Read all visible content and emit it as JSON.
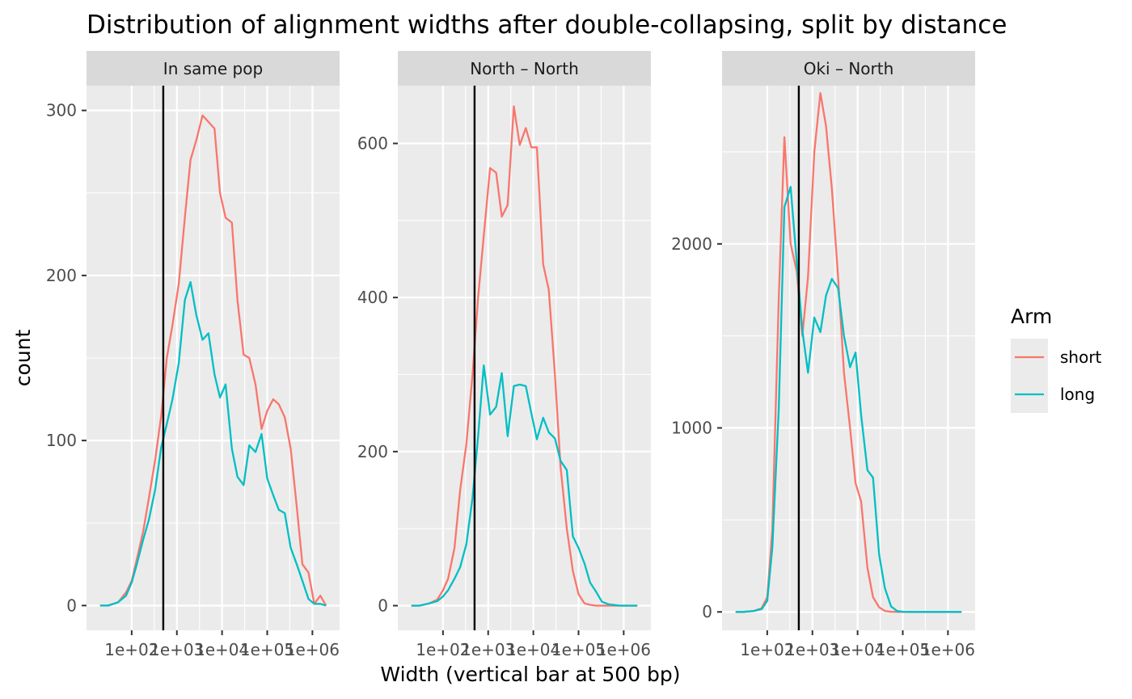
{
  "chart_data": {
    "type": "line",
    "title": "Distribution of alignment widths after double-collapsing, split by distance",
    "xlabel": "Width (vertical bar at 500 bp)",
    "ylabel": "count",
    "x_scale": "log10",
    "xlim": [
      10,
      4000000
    ],
    "x_ticks": [
      100,
      1000,
      10000,
      100000,
      1000000
    ],
    "x_tick_labels": [
      "1e+02",
      "1e+03",
      "1e+04",
      "1e+05",
      "1e+06"
    ],
    "vline": 500,
    "grid": true,
    "legend": {
      "title": "Arm",
      "position": "right",
      "entries": [
        {
          "label": "short",
          "color": "#F8766D"
        },
        {
          "label": "long",
          "color": "#00BFC4"
        }
      ]
    },
    "x": [
      20,
      30,
      50,
      75,
      100,
      130,
      180,
      240,
      330,
      450,
      600,
      800,
      1100,
      1500,
      2000,
      2700,
      3700,
      5000,
      6800,
      9000,
      12000,
      16500,
      22000,
      30000,
      40000,
      55000,
      75000,
      100000,
      135000,
      180000,
      245000,
      330000,
      450000,
      600000,
      820000,
      1100000,
      1500000,
      2000000
    ],
    "panels": [
      {
        "strip": "In same pop",
        "ylim": [
          -15,
          315
        ],
        "y_ticks": [
          0,
          100,
          200,
          300
        ],
        "y_tick_labels": [
          "0",
          "100",
          "200",
          "300"
        ],
        "series": [
          {
            "name": "short",
            "color": "#F8766D",
            "values": [
              0,
              0,
              2,
              8,
              15,
              28,
              45,
              65,
              88,
              115,
              150,
              170,
              195,
              235,
              270,
              282,
              297,
              293,
              289,
              250,
              235,
              232,
              185,
              152,
              150,
              134,
              107,
              118,
              125,
              122,
              114,
              95,
              60,
              25,
              20,
              1,
              6,
              0
            ]
          },
          {
            "name": "long",
            "color": "#00BFC4",
            "values": [
              0,
              0,
              2,
              6,
              14,
              25,
              40,
              52,
              70,
              96,
              110,
              125,
              147,
              185,
              196,
              176,
              161,
              165,
              140,
              126,
              134,
              95,
              78,
              73,
              97,
              93,
              104,
              77,
              67,
              58,
              56,
              35,
              25,
              15,
              4,
              1,
              1,
              0
            ]
          }
        ]
      },
      {
        "strip": "North – North",
        "ylim": [
          -32,
          675
        ],
        "y_ticks": [
          0,
          200,
          400,
          600
        ],
        "y_tick_labels": [
          "0",
          "200",
          "400",
          "600"
        ],
        "series": [
          {
            "name": "short",
            "color": "#F8766D",
            "values": [
              0,
              0,
              3,
              8,
              20,
              35,
              75,
              150,
              210,
              300,
              400,
              480,
              568,
              562,
              505,
              520,
              648,
              598,
              620,
              595,
              595,
              443,
              410,
              300,
              180,
              100,
              45,
              15,
              3,
              1,
              0,
              0,
              0,
              0,
              0,
              0,
              0,
              0
            ]
          },
          {
            "name": "long",
            "color": "#00BFC4",
            "values": [
              0,
              0,
              3,
              6,
              12,
              20,
              35,
              50,
              80,
              140,
              220,
              312,
              248,
              258,
              302,
              220,
              285,
              287,
              285,
              250,
              216,
              244,
              225,
              217,
              188,
              176,
              90,
              75,
              55,
              30,
              18,
              5,
              2,
              1,
              0,
              0,
              0,
              0
            ]
          }
        ]
      },
      {
        "strip": "Oki – North",
        "ylim": [
          -100,
          2860
        ],
        "y_ticks": [
          0,
          1000,
          2000
        ],
        "y_tick_labels": [
          "0",
          "1000",
          "2000"
        ],
        "series": [
          {
            "name": "short",
            "color": "#F8766D",
            "values": [
              0,
              0,
              5,
              20,
              80,
              450,
              1700,
              2580,
              2000,
              1850,
              1500,
              1820,
              2500,
              2820,
              2640,
              2300,
              1820,
              1300,
              1000,
              700,
              600,
              240,
              80,
              25,
              5,
              1,
              0,
              0,
              0,
              0,
              0,
              0,
              0,
              0,
              0,
              0,
              0,
              0
            ]
          },
          {
            "name": "long",
            "color": "#00BFC4",
            "values": [
              0,
              0,
              5,
              15,
              60,
              350,
              1100,
              2200,
              2310,
              1900,
              1530,
              1300,
              1600,
              1520,
              1720,
              1810,
              1760,
              1500,
              1330,
              1410,
              1070,
              770,
              730,
              310,
              130,
              30,
              5,
              1,
              0,
              0,
              0,
              0,
              0,
              0,
              0,
              0,
              0,
              0
            ]
          }
        ]
      }
    ]
  }
}
